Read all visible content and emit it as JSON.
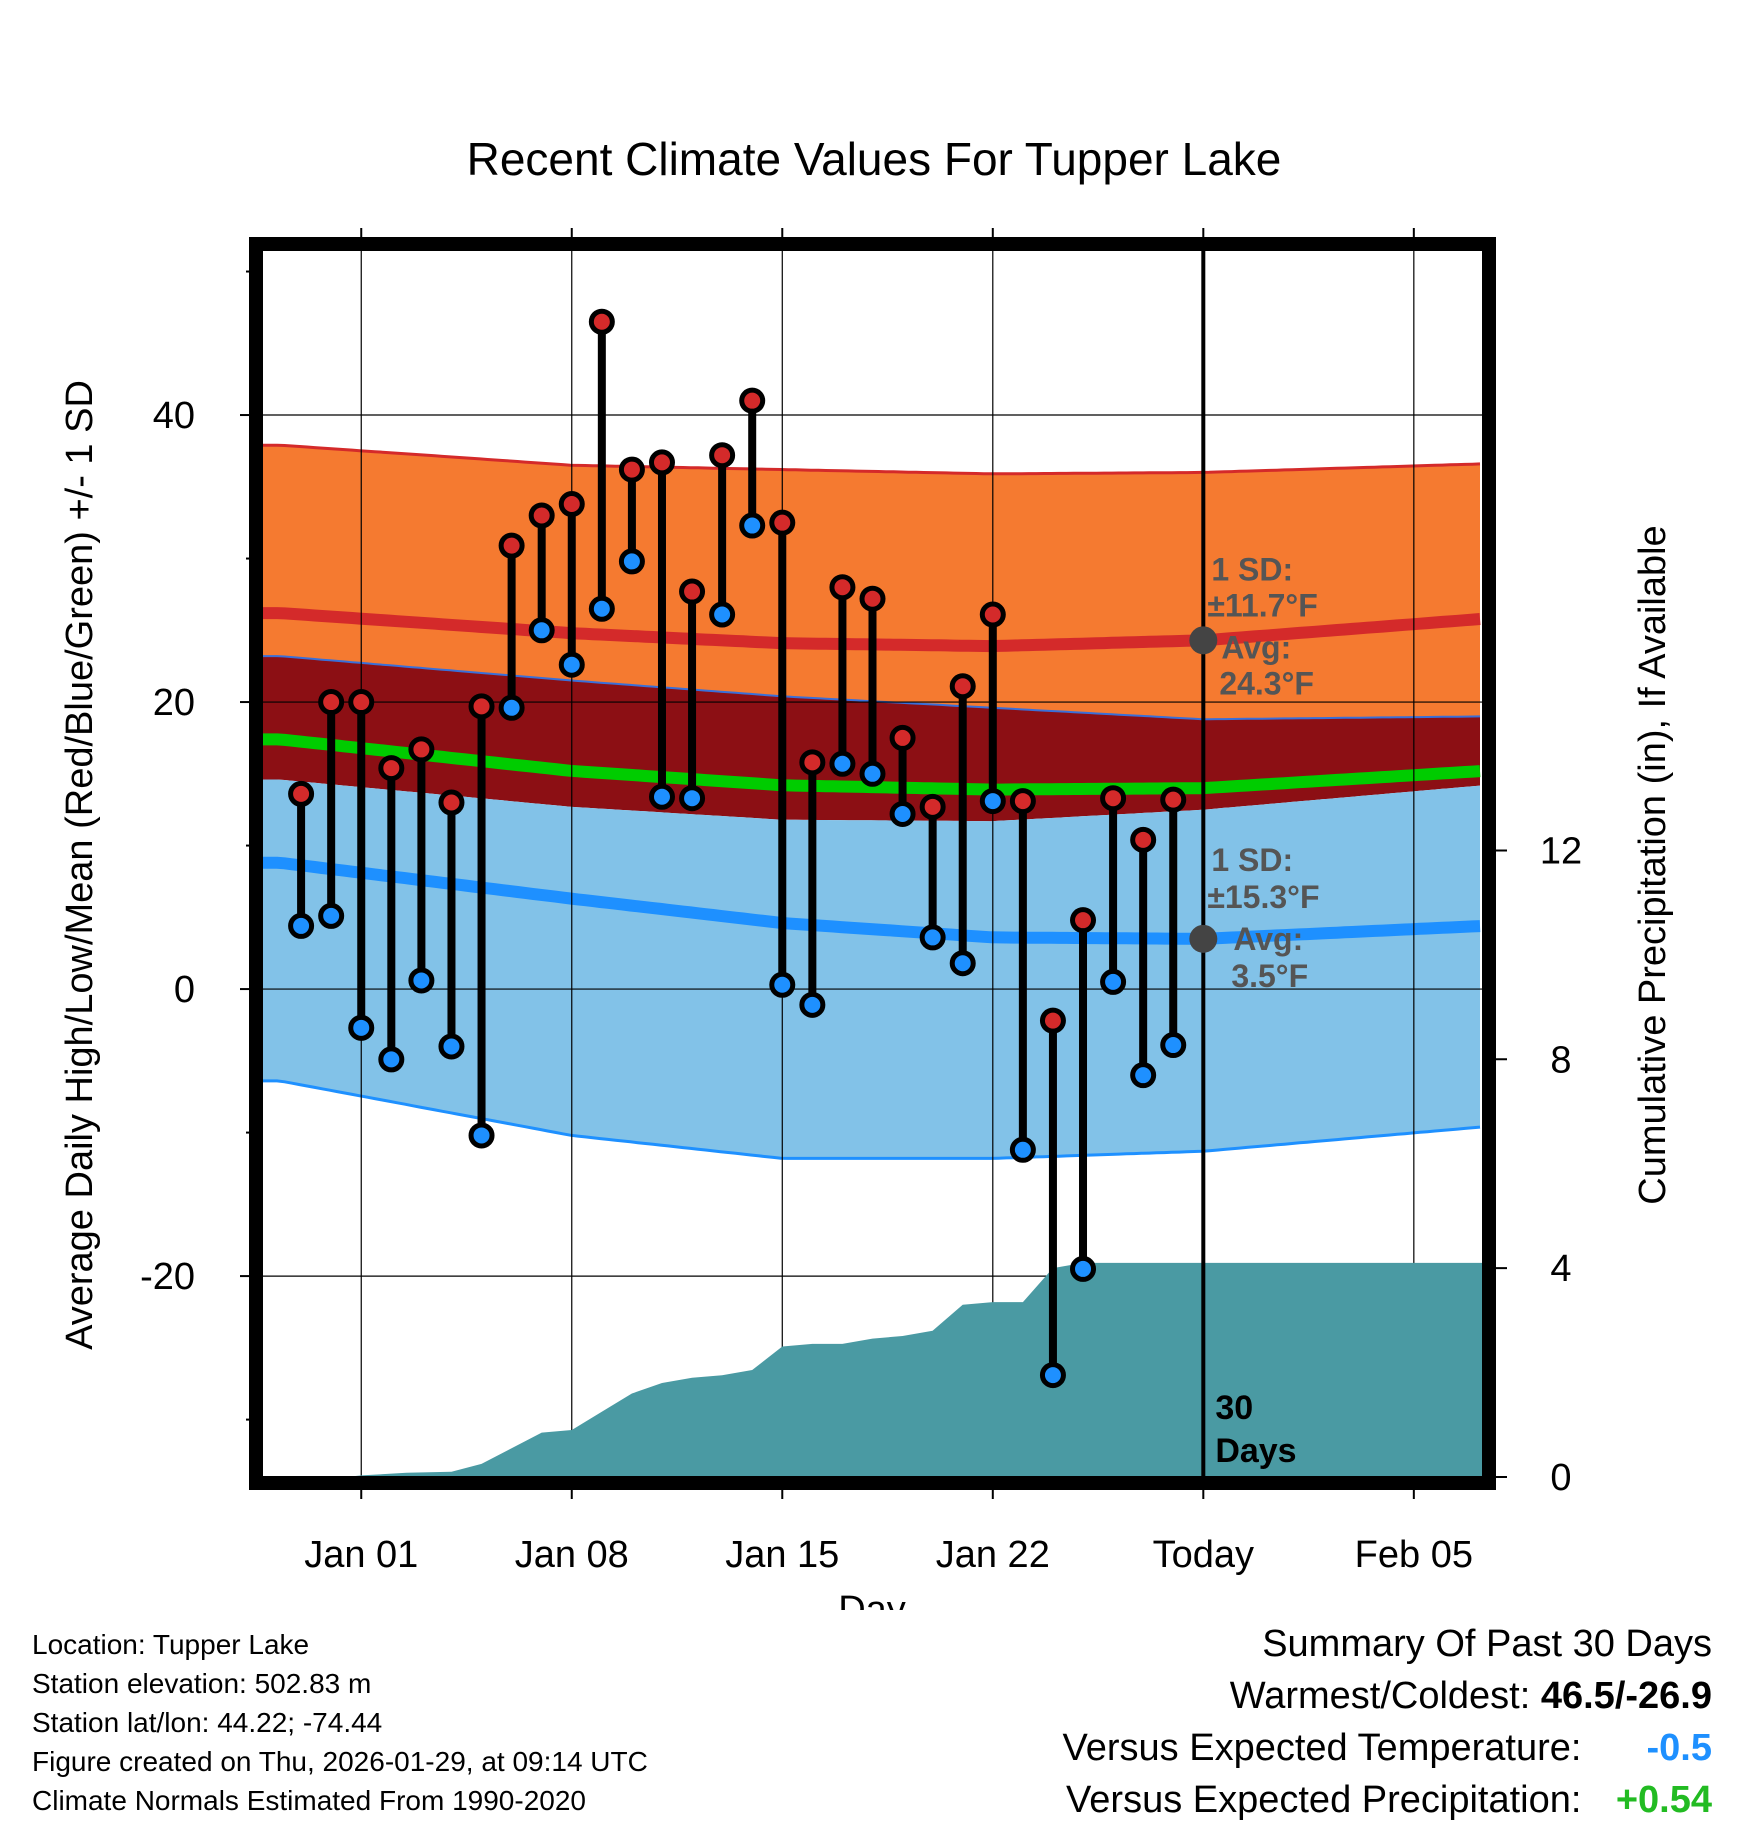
{
  "chart_data": {
    "type": "line",
    "title": "Recent Climate Values For Tupper Lake",
    "xlabel": "Day",
    "ylabel": "Average Daily High/Low/Mean (Red/Blue/Green) +/- 1 SD",
    "y2label": "Cumulative Precipitation (in), If Available",
    "ylim": [
      -34,
      51.5
    ],
    "y2lim": [
      0,
      23.5
    ],
    "xlim": [
      -3.3,
      37.3
    ],
    "x_ticks": [
      {
        "day": 0,
        "label": "Jan 01"
      },
      {
        "day": 7,
        "label": "Jan 08"
      },
      {
        "day": 14,
        "label": "Jan 15"
      },
      {
        "day": 21,
        "label": "Jan 22"
      },
      {
        "day": 28,
        "label": "Today"
      },
      {
        "day": 35,
        "label": "Feb 05"
      }
    ],
    "y_ticks": [
      40,
      20,
      0,
      -20
    ],
    "y_minor_ticks": [
      50,
      30,
      10,
      -10,
      -30
    ],
    "y2_ticks": [
      12,
      8,
      4,
      0
    ],
    "today_day": 28,
    "normals": {
      "days": [
        -2.7,
        7,
        14,
        21,
        28,
        37.3
      ],
      "high_avg": [
        26.2,
        24.8,
        24.1,
        23.9,
        24.3,
        25.8
      ],
      "high_plus_sd": [
        37.9,
        36.5,
        36.2,
        35.9,
        36.0,
        36.6
      ],
      "high_minus_sd": [
        23.2,
        21.5,
        20.4,
        19.6,
        18.8,
        19.0
      ],
      "mean_avg": [
        17.4,
        15.2,
        14.2,
        13.9,
        14.0,
        15.2
      ],
      "low_avg": [
        8.8,
        6.3,
        4.6,
        3.6,
        3.5,
        4.4
      ],
      "low_plus_sd": [
        14.6,
        12.7,
        11.8,
        11.7,
        12.5,
        14.2
      ],
      "low_minus_sd": [
        -6.4,
        -10.2,
        -11.8,
        -11.8,
        -11.3,
        -9.6
      ]
    },
    "series": [
      {
        "name": "Daily High",
        "color": "#d42a2a",
        "days": [
          -2,
          -1,
          0,
          1,
          2,
          3,
          4,
          5,
          6,
          7,
          8,
          9,
          10,
          11,
          12,
          13,
          14,
          15,
          16,
          17,
          18,
          19,
          20,
          21,
          22,
          23,
          24,
          25,
          26,
          27
        ],
        "values": [
          13.6,
          20.0,
          20.0,
          15.4,
          16.7,
          13.0,
          19.7,
          30.9,
          33.0,
          33.8,
          46.5,
          36.2,
          36.7,
          27.7,
          37.2,
          41.0,
          32.5,
          15.8,
          28.0,
          27.2,
          17.5,
          12.7,
          21.1,
          26.1,
          13.1,
          -2.2,
          4.8,
          13.3,
          10.4,
          13.2
        ]
      },
      {
        "name": "Daily Low",
        "color": "#1e90ff",
        "days": [
          -2,
          -1,
          0,
          1,
          2,
          3,
          4,
          5,
          6,
          7,
          8,
          9,
          10,
          11,
          12,
          13,
          14,
          15,
          16,
          17,
          18,
          19,
          20,
          21,
          22,
          23,
          24,
          25,
          26,
          27
        ],
        "values": [
          4.4,
          5.1,
          -2.7,
          -4.9,
          0.6,
          -4.0,
          -10.2,
          19.6,
          25.0,
          22.6,
          26.5,
          29.8,
          13.4,
          13.3,
          26.1,
          32.3,
          0.3,
          -1.1,
          15.7,
          15.0,
          12.2,
          3.6,
          1.8,
          13.1,
          -11.2,
          -26.9,
          -19.5,
          0.5,
          -6.0,
          -3.9
        ]
      }
    ],
    "precip_cumulative": {
      "days": [
        -3.3,
        -0.5,
        0,
        1.5,
        3,
        4,
        5,
        6,
        7,
        8,
        9,
        10,
        11,
        12,
        13,
        14,
        15,
        16,
        17,
        18,
        19,
        20,
        21,
        22,
        23,
        24,
        25,
        26,
        27,
        28,
        37.3
      ],
      "values": [
        0,
        0,
        0.03,
        0.08,
        0.1,
        0.25,
        0.55,
        0.85,
        0.9,
        1.25,
        1.6,
        1.8,
        1.9,
        1.95,
        2.05,
        2.5,
        2.55,
        2.55,
        2.65,
        2.7,
        2.8,
        3.3,
        3.35,
        3.35,
        4.0,
        4.1,
        4.1,
        4.1,
        4.1,
        4.1,
        4.1
      ]
    },
    "annotations": {
      "high_sd_line1": "1 SD:",
      "high_sd_line2": "±11.7°F",
      "high_avg_line1": "Avg:",
      "high_avg_line2": "24.3°F",
      "high_avg_value": 24.3,
      "low_sd_line1": "1 SD:",
      "low_sd_line2": "±15.3°F",
      "low_avg_line1": "Avg:",
      "low_avg_line2": "3.5°F",
      "low_avg_value": 3.5,
      "days_line1": "30",
      "days_line2": "Days"
    },
    "colors": {
      "high_band": "#f57a30",
      "high_line": "#d42a2a",
      "mid_band": "#8c0f14",
      "mean_line": "#00cc00",
      "low_band": "#82c2e8",
      "low_line": "#1e90ff",
      "precip_fill": "#4a9aa3",
      "avg_marker": "#444444"
    }
  },
  "footer_left": [
    "Location: Tupper Lake",
    "Station elevation: 502.83 m",
    "Station lat/lon: 44.22; -74.44",
    "Figure created on Thu, 2026-01-29, at 09:14 UTC",
    "Climate Normals Estimated From 1990-2020"
  ],
  "summary": {
    "heading": "Summary Of Past 30 Days",
    "warm_cold_label": "Warmest/Coldest:",
    "warm_cold_value": "46.5/-26.9",
    "dep_temp_label": "Versus Expected Temperature:",
    "dep_temp_value": "-0.5",
    "dep_prcp_label": "Versus Expected Precipitation:",
    "dep_prcp_value": "+0.54"
  }
}
